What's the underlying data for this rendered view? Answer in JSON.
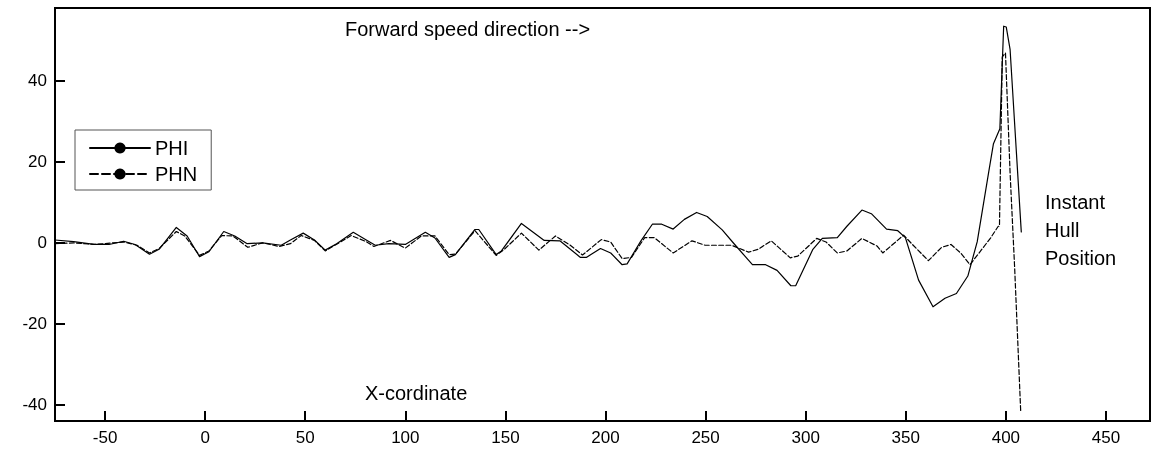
{
  "chart_data": {
    "type": "line",
    "xlabel": "X-cordinate",
    "annotations": [
      "Forward speed direction -->",
      "Instant Hull Position"
    ],
    "xlim": [
      -75,
      472
    ],
    "xticks": [
      -50,
      0,
      50,
      100,
      150,
      200,
      250,
      300,
      350,
      400,
      450
    ],
    "ylim": [
      -44,
      58
    ],
    "yticks": [
      -40,
      -20,
      0,
      20,
      40
    ],
    "grid": false,
    "legend": "top left",
    "marker": "none",
    "series": [
      {
        "name": "PHI",
        "color": "#000000",
        "line_style": "solid",
        "x": [
          -75,
          -65.7,
          -55.5,
          -48,
          -40.7,
          -35,
          -27.8,
          -23,
          -14.4,
          -9,
          -2.8,
          1.9,
          9.3,
          14.8,
          21,
          28.7,
          38,
          42.6,
          49,
          54.6,
          60,
          65.7,
          74,
          80.5,
          85,
          91.7,
          100,
          110,
          114.8,
          121.9,
          125,
          134.8,
          136.7,
          145.4,
          148,
          158,
          169.4,
          177.2,
          187.5,
          190.4,
          197.5,
          202.6,
          208.3,
          210.8,
          217.7,
          223.4,
          228.1,
          233.8,
          239.4,
          245.5,
          250.8,
          258.3,
          264,
          273.4,
          280,
          285.7,
          292.6,
          295,
          303.6,
          308.3,
          315.8,
          320.6,
          328.1,
          332.8,
          340.4,
          346,
          349.8,
          356.4,
          363.6,
          369.6,
          375.3,
          381,
          385.7,
          391.4,
          393.8,
          397,
          398.9,
          400.2,
          402.1,
          407.7
        ],
        "values": [
          0.7,
          0.3,
          -0.4,
          -0.4,
          0.4,
          -0.4,
          -2.8,
          -1.6,
          3.8,
          1.7,
          -3.4,
          -2.2,
          2.8,
          1.7,
          -0.2,
          0,
          -0.6,
          0.7,
          2.4,
          0.7,
          -1.8,
          -0.2,
          2.6,
          0.7,
          -0.6,
          -0.2,
          -0.4,
          2.6,
          1.2,
          -3.6,
          -2.9,
          3.3,
          3.3,
          -2.9,
          -2,
          4.8,
          0.6,
          0.5,
          -3.6,
          -3.6,
          -1.4,
          -2.5,
          -5.4,
          -5.2,
          0.5,
          4.6,
          4.6,
          3.4,
          5.8,
          7.5,
          6.5,
          3.2,
          -0.1,
          -5.4,
          -5.4,
          -6.8,
          -10.6,
          -10.6,
          -1.6,
          1.1,
          1.3,
          4.1,
          8.1,
          7.2,
          3.4,
          3,
          1.3,
          -9.2,
          -15.8,
          -13.7,
          -12.5,
          -8.2,
          0.3,
          17.4,
          24.5,
          28.2,
          53.5,
          53.3,
          47.8,
          2.7
        ]
      },
      {
        "name": "PHN",
        "color": "#000000",
        "line_style": "dashed",
        "x": [
          -75,
          -65.7,
          -55.5,
          -40.7,
          -34,
          -27.8,
          -23,
          -14.4,
          -10.2,
          -2.8,
          1.9,
          8.3,
          13.9,
          21.3,
          28.7,
          37,
          42.6,
          48,
          54.6,
          60,
          64.8,
          73,
          80.5,
          84.3,
          92.6,
          100,
          108,
          114.8,
          121.9,
          125,
          134.8,
          145.4,
          149,
          158,
          166.7,
          175,
          182.4,
          188.5,
          197.9,
          202.6,
          208.3,
          213,
          219.6,
          224.3,
          233.8,
          243.2,
          249.8,
          258.3,
          263,
          271.5,
          276.2,
          282.8,
          292.3,
          296,
          305.5,
          310.2,
          315.8,
          320.6,
          328.1,
          335.7,
          338.5,
          344.2,
          348.9,
          353.7,
          361.3,
          367.9,
          372.6,
          377.4,
          382.1,
          392.5,
          396.2,
          396.8,
          398.2,
          399.8,
          402.1,
          404.4,
          407.4
        ],
        "values": [
          -0.2,
          0,
          -0.4,
          0.2,
          -0.6,
          -2.5,
          -1.4,
          2.8,
          1.7,
          -3.1,
          -2,
          1.8,
          1.7,
          -1.1,
          0,
          -0.9,
          -0.2,
          1.8,
          0.6,
          -2,
          -0.6,
          1.8,
          0.3,
          -0.9,
          0.6,
          -1.3,
          1.7,
          1.7,
          -2.9,
          -2.8,
          3,
          -3.1,
          -1.8,
          2.4,
          -1.8,
          1.7,
          -0.6,
          -3,
          0.8,
          0.2,
          -3.9,
          -3.6,
          1.3,
          1.3,
          -2.5,
          0.5,
          -0.6,
          -0.6,
          -0.6,
          -2.3,
          -1.6,
          0.5,
          -3.7,
          -3.3,
          1.1,
          0.2,
          -2.5,
          -2,
          1.1,
          -0.8,
          -2.5,
          -0.1,
          1.9,
          -0.6,
          -4.4,
          -1.1,
          -0.4,
          -2.5,
          -5.4,
          1.3,
          4.1,
          4.1,
          45.9,
          46.9,
          17.4,
          -6.3,
          -41.5
        ]
      }
    ]
  }
}
